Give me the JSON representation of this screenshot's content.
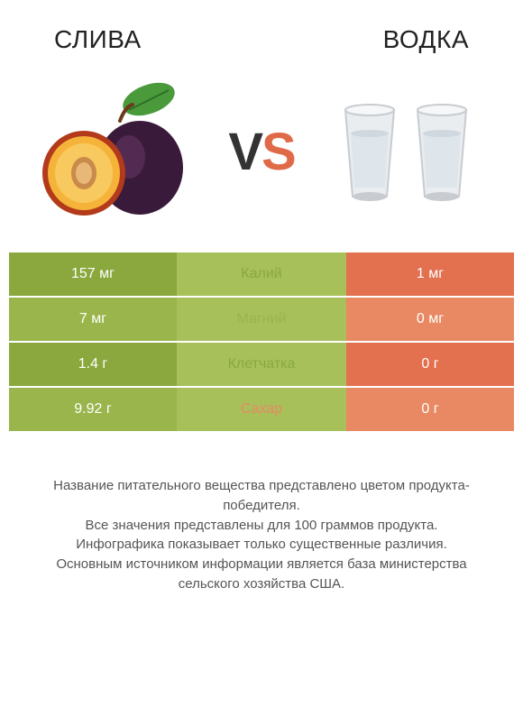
{
  "colors": {
    "green_dark": "#8aa83d",
    "green_mid": "#9ab54b",
    "green_light": "#a7c05a",
    "orange_dark": "#e3704f",
    "orange_light": "#e88963",
    "text": "#333333",
    "footer_text": "#555555",
    "bg": "#ffffff"
  },
  "header": {
    "left_title": "Слива",
    "right_title": "Водка"
  },
  "vs": {
    "v": "V",
    "s": "S"
  },
  "rows": [
    {
      "label": "Калий",
      "left": "157 мг",
      "right": "1 мг",
      "winner": "left"
    },
    {
      "label": "Магний",
      "left": "7 мг",
      "right": "0 мг",
      "winner": "left"
    },
    {
      "label": "Клетчатка",
      "left": "1.4 г",
      "right": "0 г",
      "winner": "left"
    },
    {
      "label": "Сахар",
      "left": "9.92 г",
      "right": "0 г",
      "winner": "right"
    }
  ],
  "footer": {
    "l1": "Название питательного вещества представлено цветом продукта-победителя.",
    "l2": "Все значения представлены для 100 граммов продукта.",
    "l3": "Инфографика показывает только существенные различия.",
    "l4": "Основным источником информации является база министерства сельского хозяйства США."
  }
}
